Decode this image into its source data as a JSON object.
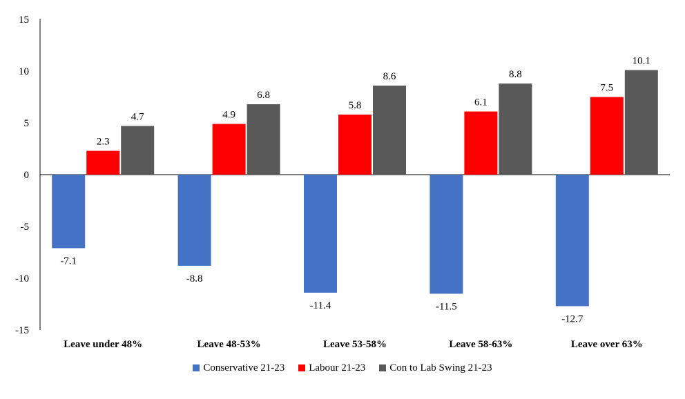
{
  "chart_data": {
    "type": "bar",
    "categories": [
      "Leave under 48%",
      "Leave 48-53%",
      "Leave 53-58%",
      "Leave 58-63%",
      "Leave over 63%"
    ],
    "series": [
      {
        "name": "Conservative 21-23",
        "color": "#4472C4",
        "values": [
          -7.1,
          -8.8,
          -11.4,
          -11.5,
          -12.7
        ],
        "labels": [
          "-7.1",
          "-8.8",
          "-11.4",
          "-11.5",
          "-12.7"
        ]
      },
      {
        "name": "Labour 21-23",
        "color": "#FF0000",
        "values": [
          2.3,
          4.9,
          5.8,
          6.1,
          7.5
        ],
        "labels": [
          "2.3",
          "4.9",
          "5.8",
          "6.1",
          "7.5"
        ]
      },
      {
        "name": "Con to Lab Swing 21-23",
        "color": "#595959",
        "values": [
          4.7,
          6.8,
          8.6,
          8.8,
          10.1
        ],
        "labels": [
          "4.7",
          "6.8",
          "8.6",
          "8.8",
          "10.1"
        ]
      }
    ],
    "yticks": [
      "15",
      "10",
      "5",
      "0",
      "-5",
      "-10",
      "-15"
    ],
    "ylim": [
      -15,
      15
    ],
    "grid": false,
    "legend": "bottom",
    "title": "",
    "xlabel": "",
    "ylabel": ""
  }
}
